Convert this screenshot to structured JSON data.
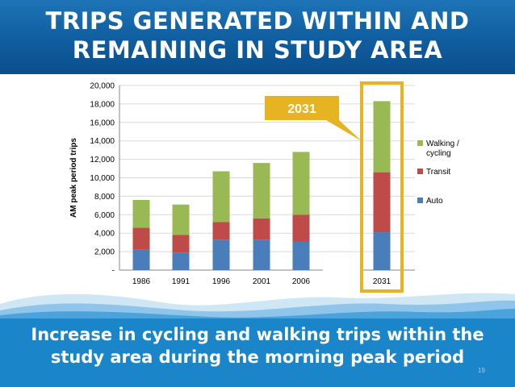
{
  "slide": {
    "title_line1": "TRIPS GENERATED WITHIN AND",
    "title_line2": "REMAINING IN STUDY AREA",
    "caption_line1": "Increase in cycling and walking trips within the",
    "caption_line2": "study area during the morning peak period",
    "slide_number": "19"
  },
  "chart_data": {
    "type": "bar",
    "stacked": true,
    "categories": [
      "1986",
      "1991",
      "1996",
      "2001",
      "2006",
      "2031"
    ],
    "series": [
      {
        "name": "Auto",
        "color": "#4a7ebb",
        "values": [
          2200,
          1900,
          3300,
          3300,
          3100,
          4100
        ]
      },
      {
        "name": "Transit",
        "color": "#be4b48",
        "values": [
          2400,
          1900,
          1900,
          2300,
          2900,
          6500
        ]
      },
      {
        "name": "Walking / cycling",
        "color": "#98b954",
        "values": [
          3000,
          3300,
          5500,
          6000,
          6800,
          7700
        ]
      }
    ],
    "ylabel": "AM peak period trips",
    "ylim": [
      0,
      20000
    ],
    "yticks": [
      "-",
      "2,000",
      "4,000",
      "6,000",
      "8,000",
      "10,000",
      "12,000",
      "14,000",
      "16,000",
      "18,000",
      "20,000"
    ],
    "grid": true,
    "legend_position": "right",
    "legend_labels": [
      "Walking /",
      "cycling",
      "Transit",
      "Auto"
    ],
    "annotation": "2031",
    "highlight_category": "2031",
    "colors": {
      "highlight": "#e6b323",
      "gridline": "#d9d9d9",
      "axis": "#868686"
    }
  }
}
